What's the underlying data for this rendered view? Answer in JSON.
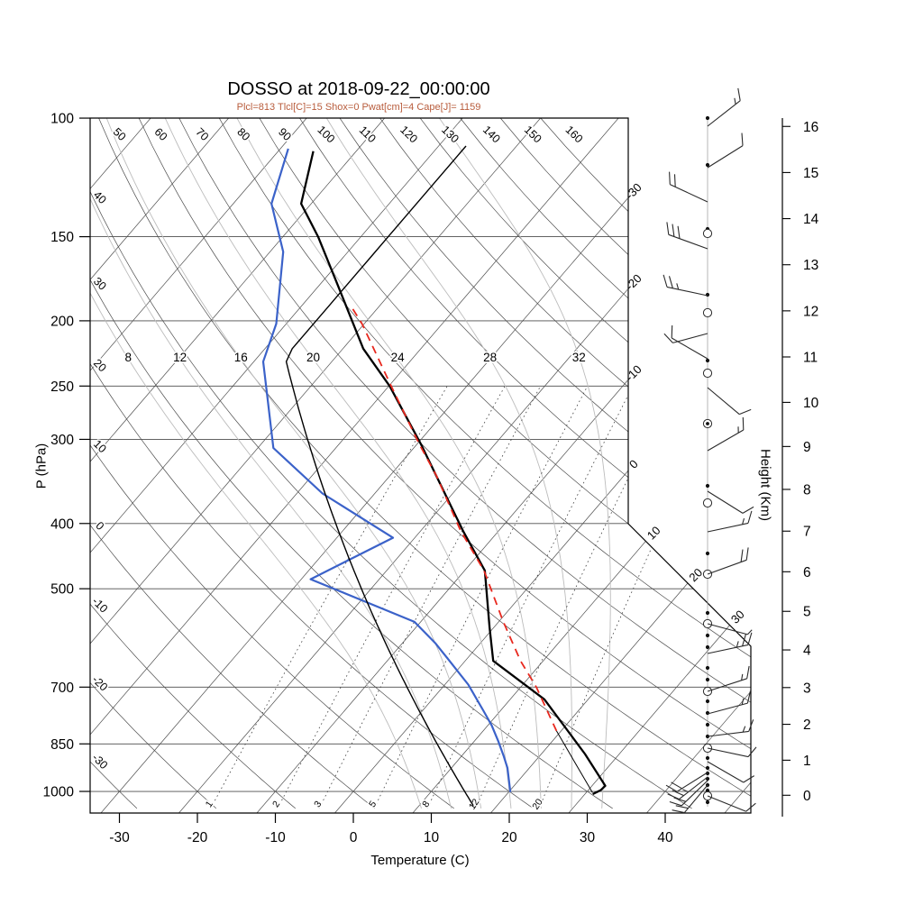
{
  "title": "DOSSO at 2018-09-22_00:00:00",
  "subtitle": "Plcl=813 Tlcl[C]=15 Shox=0 Pwat[cm]=4 Cape[J]= 1159",
  "colors": {
    "subtitle": "#b85c3c",
    "temperature": "#000000",
    "dewpoint": "#3b62c9",
    "parcel": "#e8281e",
    "standard_atmosphere": "#000000",
    "grid": "#4d4d4d",
    "moist_grid": "#bcbcbc",
    "mixing_grid": "#3f3f3f",
    "wind": "#2a2a2a"
  },
  "axes": {
    "x": {
      "label": "Temperature (C)",
      "ticks": [
        -30,
        -20,
        -10,
        0,
        10,
        20,
        30,
        40
      ]
    },
    "pressure": {
      "label": "P (hPa)",
      "ticks": [
        100,
        150,
        200,
        250,
        300,
        400,
        500,
        700,
        850,
        1000
      ]
    },
    "height": {
      "label": "Height (Km)",
      "ticks": [
        0,
        1,
        2,
        3,
        4,
        5,
        6,
        7,
        8,
        9,
        10,
        11,
        12,
        13,
        14,
        15,
        16
      ]
    }
  },
  "chart_data": {
    "type": "line",
    "subtype": "skewt-logp-sounding",
    "title": "DOSSO at 2018-09-22_00:00:00",
    "subtitle": "Plcl=813 Tlcl[C]=15 Shox=0 Pwat[cm]=4 Cape[J]= 1159",
    "xlabel": "Temperature (C)",
    "ylabel": "P (hPa)",
    "y2label": "Height (Km)",
    "xlim": [
      -35,
      45
    ],
    "ylim": [
      1075,
      100
    ],
    "grid": {
      "isotherms": {
        "start": -110,
        "end": 50,
        "step": 10,
        "right_edge_labels": [
          -30,
          -20,
          -10,
          0
        ],
        "diagonal_edge_labels": [
          10,
          20,
          30
        ]
      },
      "dry_adiabats": {
        "start": -30,
        "end": 160,
        "step": 10,
        "top_labels": [
          50,
          60,
          70,
          80,
          90,
          100,
          110,
          120,
          130,
          140,
          150,
          160
        ],
        "left_labels": [
          40,
          30,
          20,
          10,
          0,
          -10,
          -20,
          -30
        ]
      },
      "moist_adiabats": {
        "labels_at_hpa": 228,
        "values": [
          8,
          12,
          16,
          20,
          24,
          28,
          32
        ]
      },
      "mixing_ratio_gkg": {
        "values": [
          1,
          2,
          3,
          5,
          8,
          12,
          20
        ]
      }
    },
    "series": [
      {
        "name": "temperature",
        "style": "solid",
        "width": 2.3,
        "color": "#000000",
        "points": [
          [
            1009,
            31.0
          ],
          [
            996,
            31.6
          ],
          [
            981,
            31.7
          ],
          [
            880,
            25.6
          ],
          [
            730,
            14.4
          ],
          [
            640,
            3.6
          ],
          [
            570,
            -0.6
          ],
          [
            470,
            -7.4
          ],
          [
            410,
            -14.6
          ],
          [
            305,
            -29.5
          ],
          [
            250,
            -39.9
          ],
          [
            220,
            -47.4
          ],
          [
            175,
            -58.2
          ],
          [
            150,
            -65.5
          ],
          [
            134,
            -71.3
          ],
          [
            112,
            -75.5
          ]
        ]
      },
      {
        "name": "dewpoint",
        "style": "solid",
        "width": 2.2,
        "color": "#3b62c9",
        "points": [
          [
            1002,
            20.2
          ],
          [
            923,
            17.2
          ],
          [
            886,
            15.4
          ],
          [
            841,
            13.0
          ],
          [
            798,
            10.5
          ],
          [
            760,
            7.9
          ],
          [
            694,
            3.0
          ],
          [
            638,
            -2.2
          ],
          [
            603,
            -5.7
          ],
          [
            560,
            -10.8
          ],
          [
            484,
            -28.8
          ],
          [
            420,
            -22.8
          ],
          [
            361,
            -36.7
          ],
          [
            309,
            -48.0
          ],
          [
            230,
            -58.8
          ],
          [
            202,
            -61.3
          ],
          [
            158,
            -68.3
          ],
          [
            134,
            -75.1
          ],
          [
            111,
            -79.0
          ]
        ]
      },
      {
        "name": "parcel_dry_ascent",
        "style": "solid",
        "width": 1.0,
        "color": "#000000",
        "points": [
          [
            1004,
            30.8
          ],
          [
            813,
            19.4
          ]
        ]
      },
      {
        "name": "parcel_moist_ascent",
        "style": "dashed",
        "width": 1.8,
        "color": "#e8281e",
        "points": [
          [
            813,
            19.4
          ],
          [
            700,
            12.0
          ],
          [
            640,
            7.1
          ],
          [
            560,
            0.6
          ],
          [
            470,
            -7.5
          ],
          [
            410,
            -14.9
          ],
          [
            340,
            -24.0
          ],
          [
            305,
            -29.7
          ],
          [
            250,
            -39.7
          ],
          [
            202,
            -50.3
          ],
          [
            190,
            -53.7
          ]
        ]
      },
      {
        "name": "standard_atmosphere",
        "style": "solid",
        "width": 1.4,
        "color": "#000000",
        "model": {
          "surface_hpa": 1050,
          "sea_level_temp_c": 15.0,
          "tropopause_hpa": 226.3,
          "tropopause_temp_c": -56.5,
          "top_hpa": 105
        }
      }
    ],
    "wind_profile": {
      "staff_x": 785,
      "barbs": [
        {
          "y": 140,
          "angle": 38,
          "feathers": 1.5
        },
        {
          "y": 186,
          "angle": 32,
          "feathers": 1
        },
        {
          "y": 224,
          "angle": 155,
          "feathers": 2
        },
        {
          "y": 276,
          "angle": 160,
          "feathers": 3
        },
        {
          "y": 328,
          "angle": 168,
          "feathers": 2.5
        },
        {
          "y": 370,
          "angle": 195,
          "feathers": 1
        },
        {
          "y": 398,
          "angle": 150,
          "feathers": 1
        },
        {
          "y": 430,
          "angle": -40,
          "feathers": 1
        },
        {
          "y": 500,
          "angle": 30,
          "feathers": 1.5
        },
        {
          "y": 545,
          "angle": -32,
          "feathers": 1
        },
        {
          "y": 590,
          "angle": 12,
          "feathers": 1.5
        },
        {
          "y": 637,
          "angle": 20,
          "feathers": 2
        },
        {
          "y": 692,
          "angle": -15,
          "feathers": 0.5
        },
        {
          "y": 725,
          "angle": 12,
          "feathers": 2.5
        },
        {
          "y": 767,
          "angle": 18,
          "feathers": 1.5
        },
        {
          "y": 792,
          "angle": 15,
          "feathers": 1.5
        },
        {
          "y": 817,
          "angle": 7,
          "feathers": 1.5
        },
        {
          "y": 830,
          "angle": -12,
          "feathers": 1
        },
        {
          "y": 845,
          "angle": -30,
          "feathers": 1
        },
        {
          "y": 857,
          "angle": 212,
          "feathers": 2
        },
        {
          "y": 862,
          "angle": 218,
          "feathers": 2.5
        },
        {
          "y": 866,
          "angle": 224,
          "feathers": 2
        },
        {
          "y": 871,
          "angle": 230,
          "feathers": 2
        },
        {
          "y": 883,
          "angle": -22,
          "feathers": 1
        }
      ],
      "circles_y": [
        259,
        347,
        414,
        558,
        637,
        692,
        767,
        830,
        883
      ],
      "circle_dot_y": [
        470
      ],
      "dots_y": [
        131,
        183,
        254,
        327,
        400,
        471,
        539,
        614,
        680,
        705,
        718,
        741,
        754,
        778,
        791,
        804,
        817,
        841,
        852,
        858,
        864,
        871,
        877,
        890
      ]
    }
  }
}
